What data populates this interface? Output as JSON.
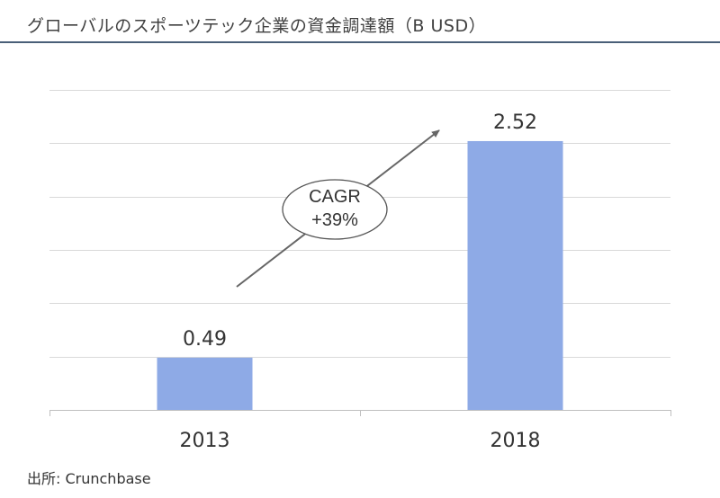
{
  "title": "グローバルのスポーツテック企業の資金調達額（B USD）",
  "source": "出所: Crunchbase",
  "colors": {
    "bar": "#8eaae6",
    "gridline": "#d9d9d9",
    "axis": "#bfbfbf",
    "arrow": "#666666",
    "title_rule": "#4a5f78"
  },
  "chart_data": {
    "type": "bar",
    "title": "グローバルのスポーツテック企業の資金調達額（B USD）",
    "xlabel": "",
    "ylabel": "",
    "categories": [
      "2013",
      "2018"
    ],
    "values": [
      0.49,
      2.52
    ],
    "data_labels": [
      "0.49",
      "2.52"
    ],
    "ylim": [
      0,
      3.0
    ],
    "grid": true,
    "legend": "none",
    "annotation": {
      "line1": "CAGR",
      "line2": "+39%"
    }
  }
}
